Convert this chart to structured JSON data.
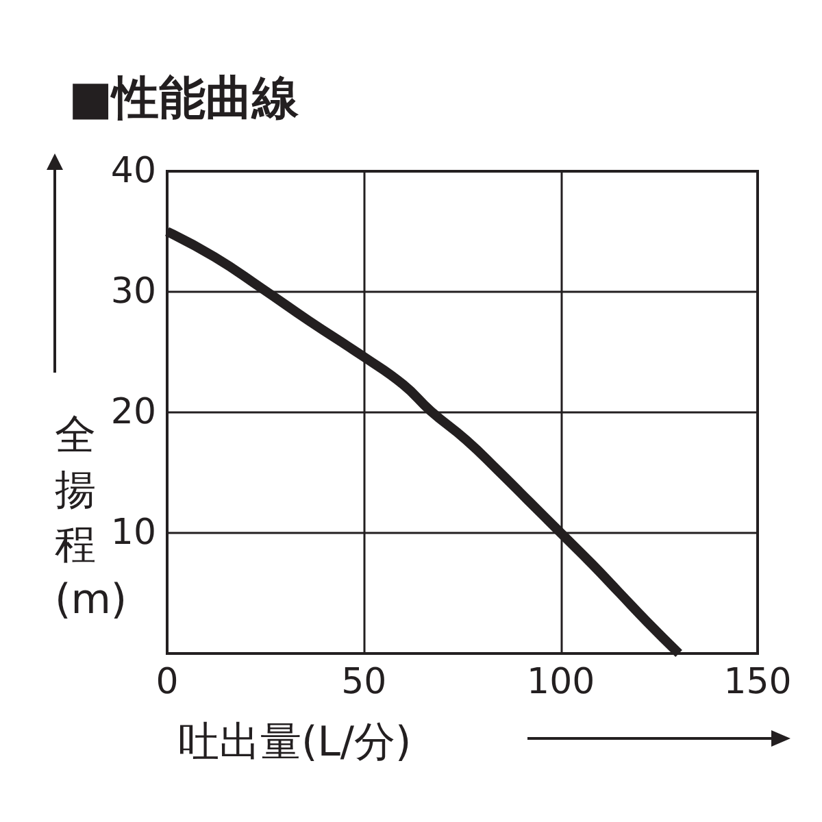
{
  "chart_data": {
    "type": "line",
    "title": "■性能曲線",
    "xlabel": "吐出量(L/分)",
    "ylabel": "全揚程(m)",
    "x": [
      0,
      12,
      24,
      36,
      50,
      60,
      67,
      76,
      84,
      92,
      100,
      108,
      115,
      122,
      130
    ],
    "series": [
      {
        "color": "#231f20",
        "values": [
          35,
          32.9,
          30.3,
          27.6,
          24.6,
          22.3,
          20.1,
          17.7,
          15.2,
          12.6,
          10,
          7.4,
          5,
          2.6,
          0
        ]
      }
    ],
    "xlim": [
      0,
      150
    ],
    "xticks": [
      0,
      50,
      100,
      150
    ],
    "ylim": [
      0,
      40
    ],
    "yticks": [
      10,
      20,
      30,
      40
    ],
    "grid": true,
    "marker": "none",
    "line_style": "solid"
  }
}
